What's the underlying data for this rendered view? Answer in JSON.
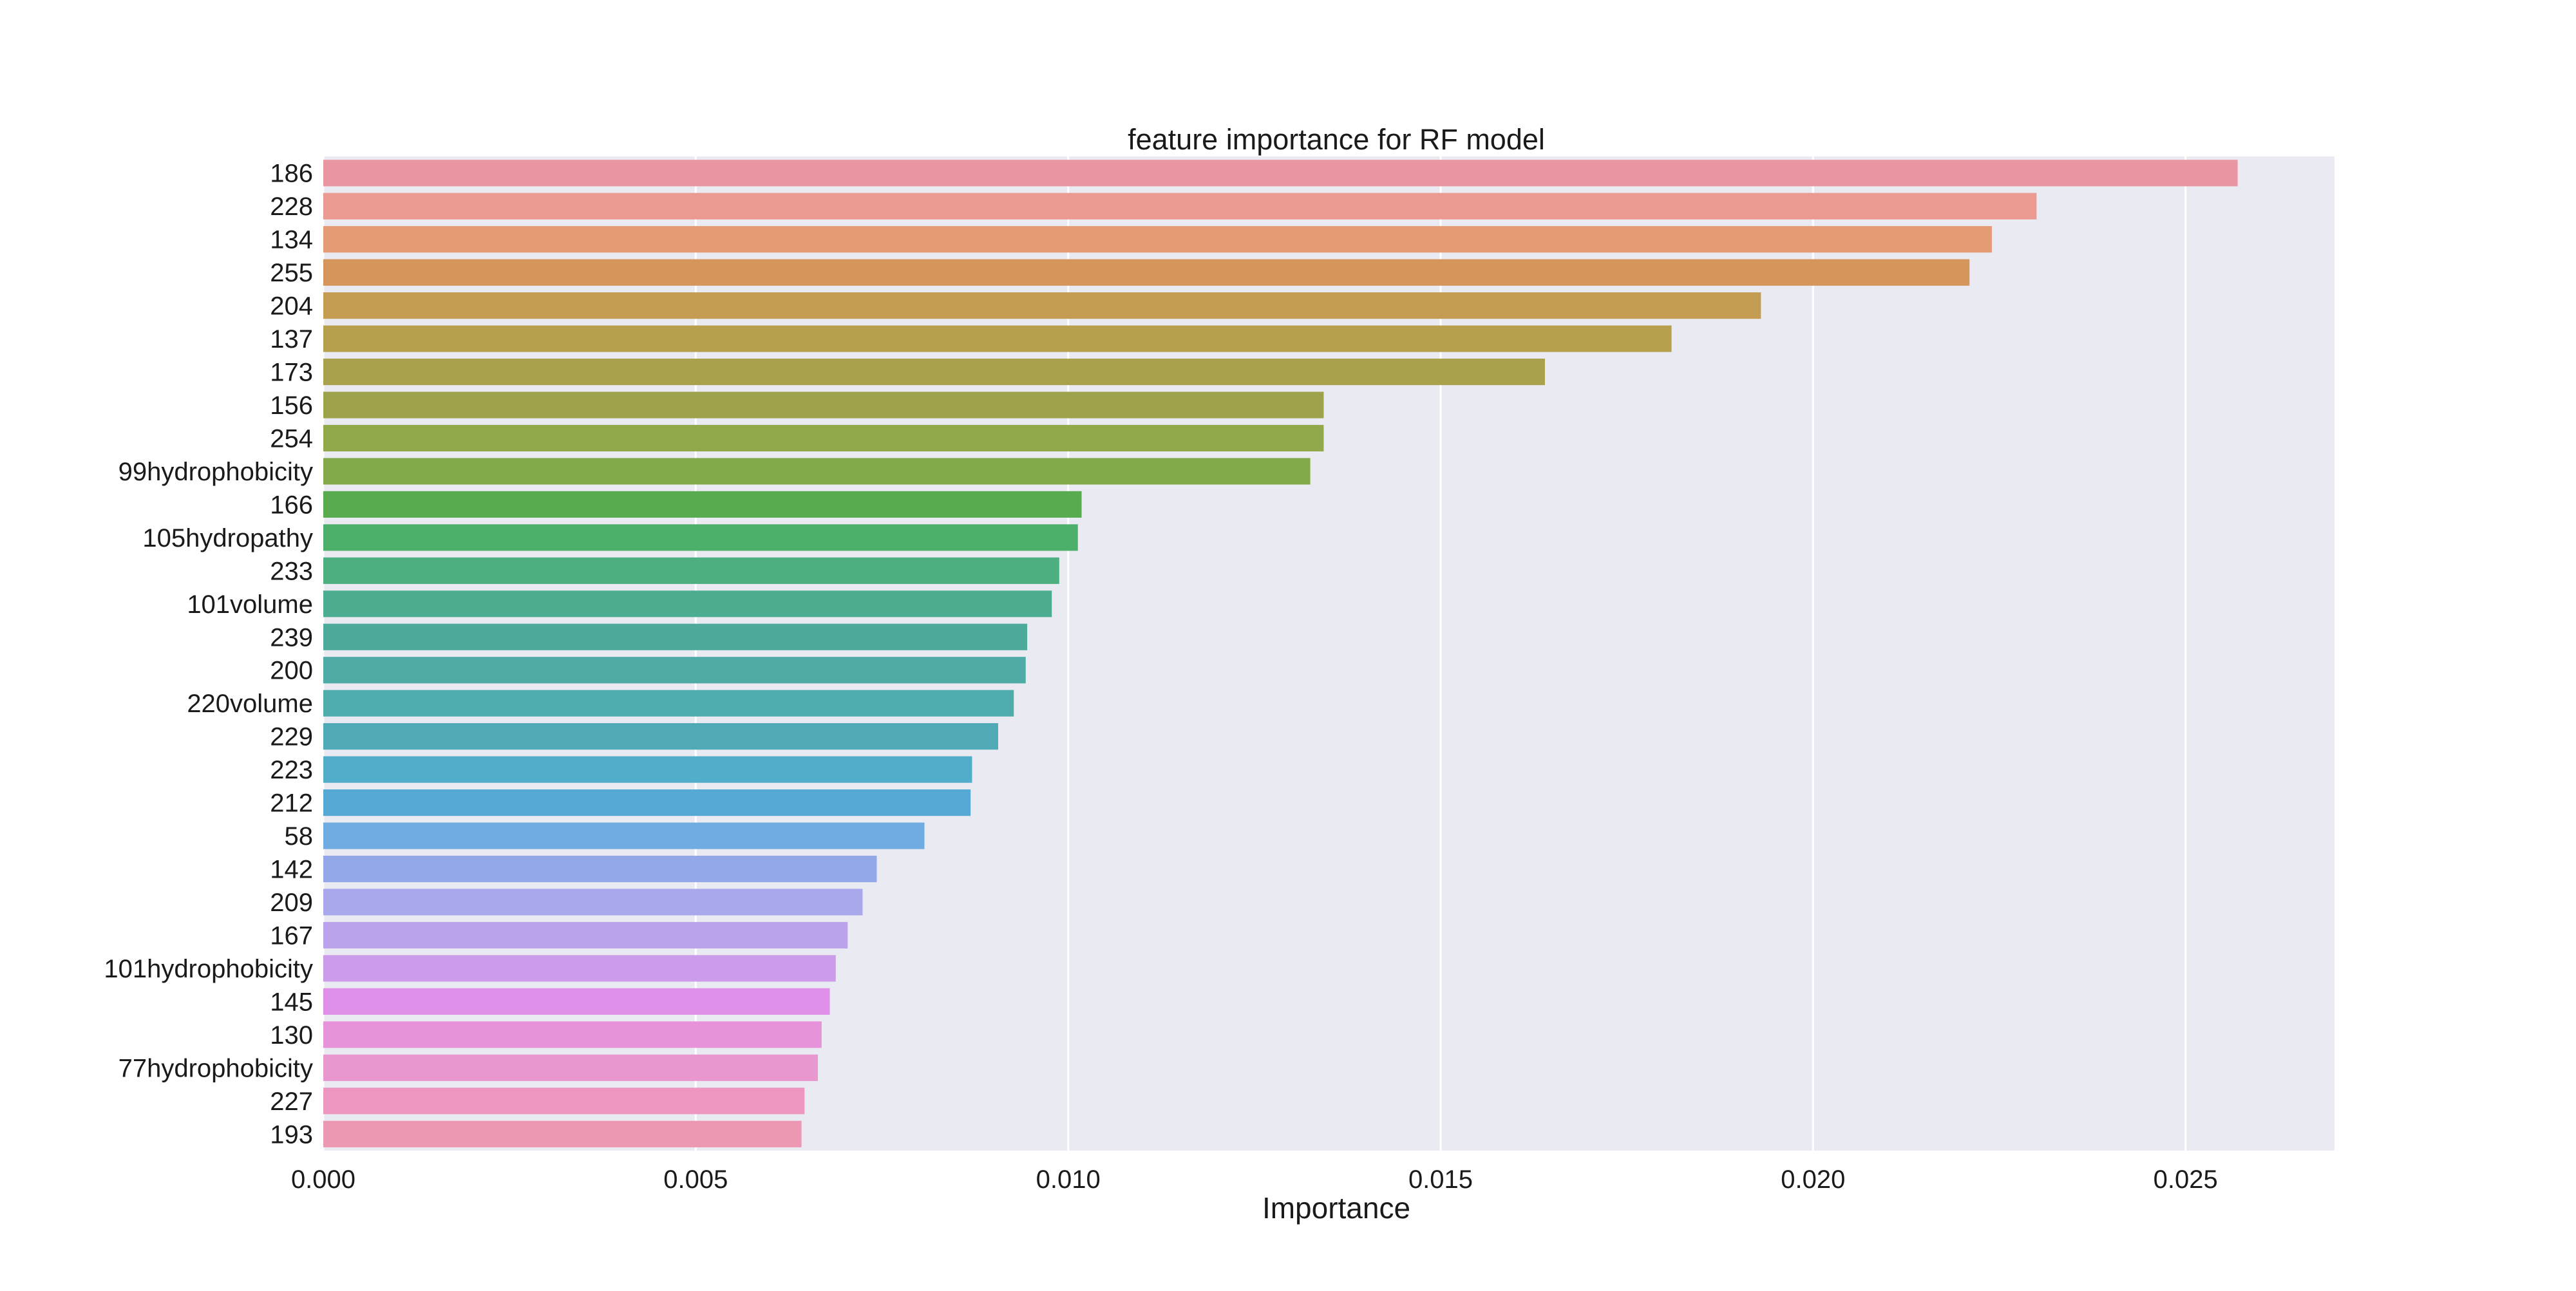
{
  "chart_data": {
    "type": "bar",
    "orientation": "horizontal",
    "title": "feature importance for RF model",
    "xlabel": "Importance",
    "ylabel": "",
    "xlim": [
      0,
      0.027
    ],
    "x_ticks": [
      {
        "value": 0.0,
        "label": "0.000"
      },
      {
        "value": 0.005,
        "label": "0.005"
      },
      {
        "value": 0.01,
        "label": "0.010"
      },
      {
        "value": 0.015,
        "label": "0.015"
      },
      {
        "value": 0.02,
        "label": "0.020"
      },
      {
        "value": 0.025,
        "label": "0.025"
      }
    ],
    "grid": true,
    "legend": "none",
    "categories": [
      "186",
      "228",
      "134",
      "255",
      "204",
      "137",
      "173",
      "156",
      "254",
      "99hydrophobicity",
      "166",
      "105hydropathy",
      "233",
      "101volume",
      "239",
      "200",
      "220volume",
      "229",
      "223",
      "212",
      "58",
      "142",
      "209",
      "167",
      "101hydrophobicity",
      "145",
      "130",
      "77hydrophobicity",
      "227",
      "193"
    ],
    "values": [
      0.0257,
      0.023,
      0.0224,
      0.0221,
      0.0193,
      0.0181,
      0.0164,
      0.01343,
      0.01343,
      0.01325,
      0.01018,
      0.01013,
      0.00988,
      0.00978,
      0.00945,
      0.00943,
      0.00927,
      0.00906,
      0.00871,
      0.00869,
      0.00807,
      0.00743,
      0.00724,
      0.00704,
      0.00688,
      0.0068,
      0.00669,
      0.00664,
      0.00646,
      0.00642
    ],
    "colors": [
      "#ea96a2",
      "#eb9a91",
      "#e69b77",
      "#d6955b",
      "#c59d52",
      "#b6a04e",
      "#a9a14c",
      "#9ea34b",
      "#91a84b",
      "#82aa4b",
      "#58ab4f",
      "#4caf6a",
      "#4daf80",
      "#4dad90",
      "#4eab9c",
      "#4faba5",
      "#4facad",
      "#50aab6",
      "#51adc9",
      "#55a9d4",
      "#6eace1",
      "#93a8e8",
      "#aaa8ec",
      "#bba3ec",
      "#cc9ceb",
      "#de8fe7",
      "#e693da",
      "#e997cf",
      "#ec96c0",
      "#ec98b2"
    ]
  }
}
